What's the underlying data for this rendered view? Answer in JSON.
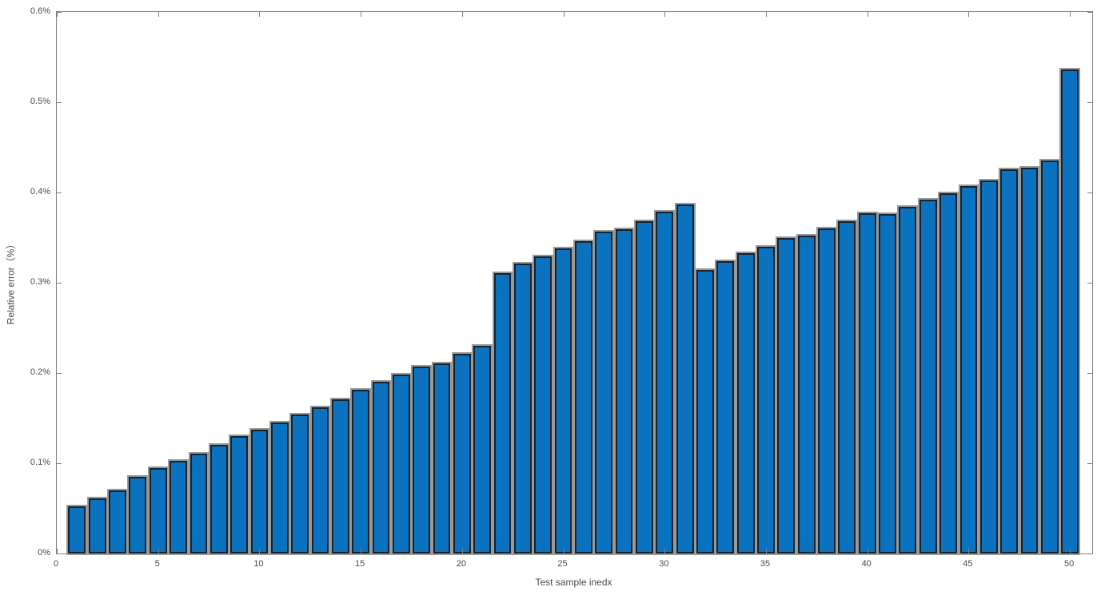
{
  "chart_data": {
    "type": "bar",
    "title": "",
    "xlabel": "Test sample inedx",
    "ylabel": "Relative error（%）",
    "x": [
      1,
      2,
      3,
      4,
      5,
      6,
      7,
      8,
      9,
      10,
      11,
      12,
      13,
      14,
      15,
      16,
      17,
      18,
      19,
      20,
      21,
      22,
      23,
      24,
      25,
      26,
      27,
      28,
      29,
      30,
      31,
      32,
      33,
      34,
      35,
      36,
      37,
      38,
      39,
      40,
      41,
      42,
      43,
      44,
      45,
      46,
      47,
      48,
      49,
      50
    ],
    "values": [
      0.052,
      0.061,
      0.07,
      0.085,
      0.095,
      0.103,
      0.111,
      0.12,
      0.13,
      0.137,
      0.145,
      0.154,
      0.162,
      0.171,
      0.181,
      0.19,
      0.198,
      0.207,
      0.211,
      0.221,
      0.23,
      0.311,
      0.321,
      0.329,
      0.338,
      0.346,
      0.357,
      0.359,
      0.368,
      0.379,
      0.387,
      0.314,
      0.324,
      0.333,
      0.34,
      0.35,
      0.352,
      0.36,
      0.368,
      0.377,
      0.376,
      0.384,
      0.392,
      0.399,
      0.407,
      0.413,
      0.426,
      0.427,
      0.435,
      0.536
    ],
    "value_unit": "percent",
    "xlim": [
      0,
      51.1
    ],
    "ylim": [
      0,
      0.6
    ],
    "xticks": [
      0,
      5,
      10,
      15,
      20,
      25,
      30,
      35,
      40,
      45,
      50
    ],
    "xtick_labels": [
      "0",
      "5",
      "10",
      "15",
      "20",
      "25",
      "30",
      "35",
      "40",
      "45",
      "50"
    ],
    "yticks": [
      0,
      0.1,
      0.2,
      0.3,
      0.4,
      0.5,
      0.6
    ],
    "ytick_labels": [
      "0%",
      "0.1%",
      "0.2%",
      "0.3%",
      "0.4%",
      "0.5%",
      "0.6%"
    ],
    "grid": "off",
    "legend": null,
    "box": "on",
    "bar_width_units": 0.86,
    "colors": {
      "bar_fill": "#0b72bf",
      "bar_edge": "#14232f",
      "bar_halo": "#9a9a9a",
      "axis_line": "#7f7f7f",
      "tick_text": "#4a4a4a",
      "label_text": "#4a4a4a",
      "background": "#ffffff"
    }
  }
}
